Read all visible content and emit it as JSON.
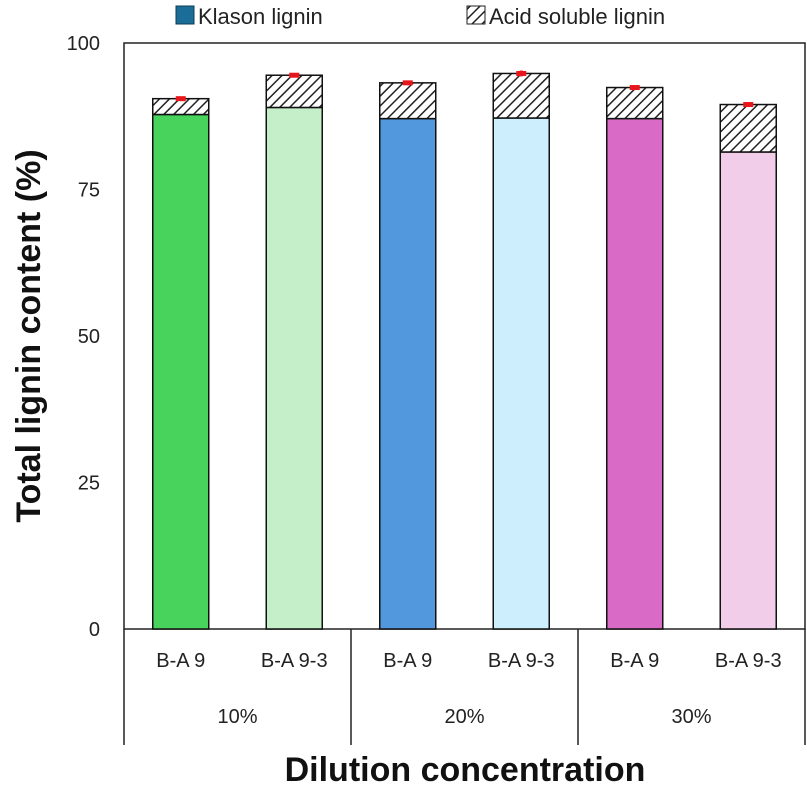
{
  "chart_data": {
    "type": "bar",
    "stacked": true,
    "title": "",
    "ylabel": "Total lignin content (%)",
    "xlabel": "Dilution concentration",
    "ylim": [
      0,
      100
    ],
    "yticks": [
      "0",
      "25",
      "50",
      "75",
      "100"
    ],
    "categories": [
      "B-A 9",
      "B-A 9-3",
      "B-A 9",
      "B-A 9-3",
      "B-A 9",
      "B-A 9-3"
    ],
    "groups": [
      {
        "label": "10%",
        "members": [
          0,
          1
        ]
      },
      {
        "label": "20%",
        "members": [
          2,
          3
        ]
      },
      {
        "label": "30%",
        "members": [
          4,
          5
        ]
      }
    ],
    "series": [
      {
        "name": "Klason lignin",
        "values": [
          87.8,
          89.0,
          87.1,
          87.2,
          87.1,
          81.4
        ]
      },
      {
        "name": "Acid soluble lignin",
        "values": [
          2.7,
          5.5,
          6.1,
          7.6,
          5.3,
          8.1
        ]
      }
    ],
    "error": [
      0.3,
      0.3,
      0.3,
      0.5,
      0.3,
      0.4
    ],
    "bar_colors": [
      "#47d35c",
      "#c4efc8",
      "#5198dc",
      "#cdeefc",
      "#d96bc6",
      "#f2cdea"
    ],
    "legend": {
      "position": "top",
      "swatches": [
        "#1b6c96",
        "hatched"
      ]
    },
    "error_color": "#e8161b"
  }
}
